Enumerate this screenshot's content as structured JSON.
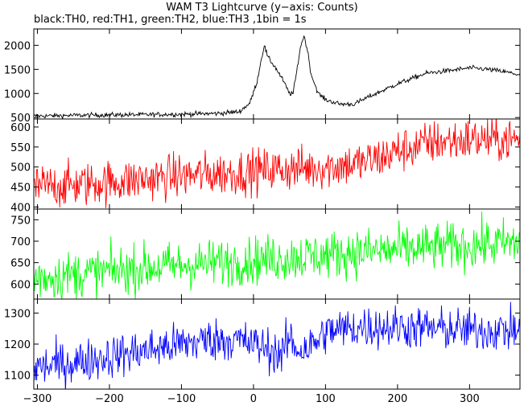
{
  "title": "WAM T3 Lightcurve (y−axis: Counts)",
  "subtitle": "black:TH0, red:TH1, green:TH2, blue:TH3 ,1bin = 1s",
  "chart_data": {
    "type": "line",
    "title": "WAM T3 Lightcurve (y−axis: Counts)",
    "subtitle": "black:TH0, red:TH1, green:TH2, blue:TH3 ,1bin = 1s",
    "xlim": [
      -305,
      370
    ],
    "xticks": [
      -300,
      -200,
      -100,
      0,
      100,
      200,
      300
    ],
    "xtick_labels": [
      "−300",
      "−200",
      "−100",
      "0",
      "100",
      "200",
      "300"
    ],
    "shared_x": true,
    "grid": false,
    "panels": [
      {
        "series": [
          {
            "name": "TH0",
            "color": "#000000",
            "x": [
              -305,
              -250,
              -200,
              -150,
              -100,
              -50,
              -20,
              -5,
              5,
              10,
              15,
              20,
              30,
              40,
              50,
              55,
              60,
              65,
              70,
              75,
              80,
              90,
              100,
              120,
              140,
              160,
              200,
              240,
              280,
              300,
              320,
              340,
              360,
              370
            ],
            "y": [
              530,
              545,
              555,
              560,
              570,
              585,
              620,
              800,
              1250,
              1650,
              2000,
              1750,
              1550,
              1300,
              1000,
              1000,
              1450,
              1950,
              2200,
              1900,
              1400,
              1000,
              870,
              780,
              780,
              930,
              1200,
              1420,
              1490,
              1530,
              1510,
              1470,
              1420,
              1380
            ],
            "noise": 25
          }
        ],
        "ylim": [
          470,
          2340
        ],
        "yticks": [
          500,
          1000,
          1500,
          2000
        ],
        "ytick_labels": [
          "500",
          "1000",
          "1500",
          "2000"
        ]
      },
      {
        "series": [
          {
            "name": "TH1",
            "color": "#ff0000",
            "x": [
              -305,
              -250,
              -200,
              -150,
              -100,
              -50,
              0,
              50,
              100,
              150,
              180,
              200,
              250,
              300,
              350,
              370
            ],
            "y": [
              450,
              455,
              462,
              470,
              478,
              483,
              490,
              495,
              500,
              510,
              525,
              540,
              562,
              568,
              568,
              568
            ],
            "noise": 28
          }
        ],
        "ylim": [
          395,
          620
        ],
        "yticks": [
          400,
          450,
          500,
          550,
          600
        ],
        "ytick_labels": [
          "400",
          "450",
          "500",
          "550",
          "600"
        ]
      },
      {
        "series": [
          {
            "name": "TH2",
            "color": "#00ff00",
            "x": [
              -305,
              -250,
              -200,
              -150,
              -100,
              -50,
              0,
              50,
              100,
              150,
              200,
              250,
              300,
              350,
              370
            ],
            "y": [
              615,
              622,
              630,
              638,
              644,
              650,
              656,
              662,
              668,
              675,
              680,
              686,
              690,
              695,
              695
            ],
            "noise": 28
          }
        ],
        "ylim": [
          565,
          775
        ],
        "yticks": [
          600,
          650,
          700,
          750
        ],
        "ytick_labels": [
          "600",
          "650",
          "700",
          "750"
        ]
      },
      {
        "series": [
          {
            "name": "TH3",
            "color": "#0000ff",
            "x": [
              -305,
              -250,
              -200,
              -150,
              -100,
              -60,
              -30,
              0,
              20,
              40,
              50,
              60,
              70,
              85,
              100,
              150,
              200,
              250,
              300,
              350,
              370
            ],
            "y": [
              1125,
              1140,
              1160,
              1180,
              1200,
              1215,
              1215,
              1200,
              1185,
              1165,
              1220,
              1185,
              1185,
              1200,
              1240,
              1255,
              1255,
              1250,
              1245,
              1245,
              1245
            ],
            "noise": 35
          }
        ],
        "ylim": [
          1055,
          1345
        ],
        "yticks": [
          1100,
          1200,
          1300
        ],
        "ytick_labels": [
          "1100",
          "1200",
          "1300"
        ]
      }
    ]
  }
}
